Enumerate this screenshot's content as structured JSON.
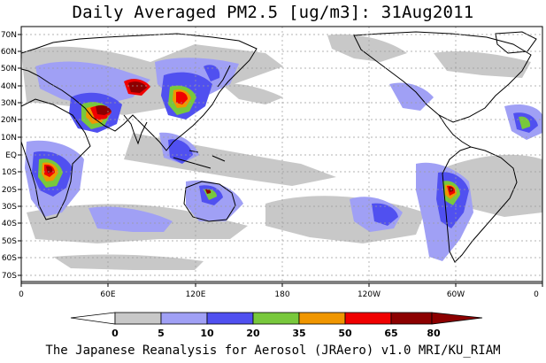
{
  "title": "Daily Averaged PM2.5 [ug/m3]: 31Aug2011",
  "footer": "The Japanese Reanalysis for Aerosol (JRAero) v1.0 MRI/KU_RIAM",
  "map": {
    "lat_labels": [
      "70N",
      "60N",
      "50N",
      "40N",
      "30N",
      "20N",
      "10N",
      "EQ",
      "10S",
      "20S",
      "30S",
      "40S",
      "50S",
      "60S",
      "70S"
    ],
    "lon_labels": [
      "0",
      "60E",
      "120E",
      "180",
      "120W",
      "60W",
      "0"
    ]
  },
  "colorbar": {
    "levels": [
      "0",
      "5",
      "10",
      "20",
      "35",
      "50",
      "65",
      "80"
    ],
    "colors": [
      "#ffffff",
      "#c8c8c8",
      "#a0a0f5",
      "#5050f0",
      "#78c83c",
      "#f09600",
      "#f00000",
      "#8c0000"
    ]
  },
  "colors": {
    "c1": "#c8c8c8",
    "c2": "#a0a0f5",
    "c3": "#5050f0",
    "c4": "#78c83c",
    "c5": "#f09600",
    "c6": "#f00000",
    "c7": "#8c0000"
  }
}
